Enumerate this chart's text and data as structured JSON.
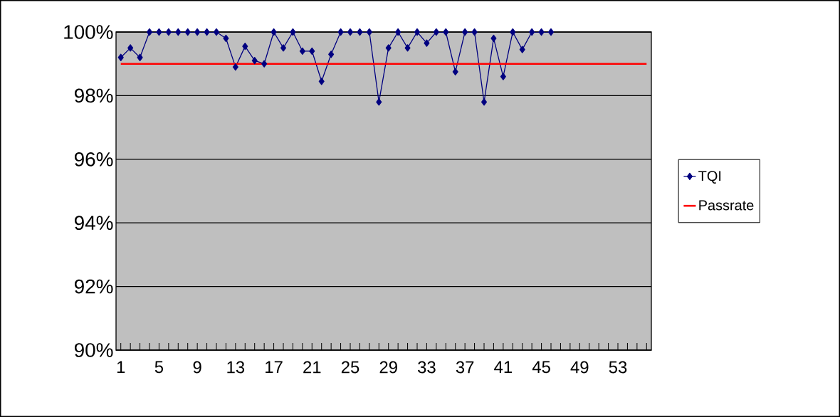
{
  "chart_data": {
    "type": "line",
    "categories": [
      "1",
      null,
      null,
      null,
      "5",
      null,
      null,
      null,
      "9",
      null,
      null,
      null,
      "13",
      null,
      null,
      null,
      "17",
      null,
      null,
      null,
      "21",
      null,
      null,
      null,
      "25",
      null,
      null,
      null,
      "29",
      null,
      null,
      null,
      "33",
      null,
      null,
      null,
      "37",
      null,
      null,
      null,
      "41",
      null,
      null,
      null,
      "45",
      null,
      null,
      null,
      "49",
      null,
      null,
      null,
      "53",
      null,
      null,
      null
    ],
    "series": [
      {
        "name": "TQI",
        "color": "#000080",
        "marker": "diamond",
        "values": [
          99.2,
          99.5,
          99.2,
          100,
          100,
          100,
          100,
          100,
          100,
          100,
          100,
          99.8,
          98.9,
          99.55,
          99.1,
          99.0,
          100,
          99.5,
          100,
          99.4,
          99.4,
          98.45,
          99.3,
          100,
          100,
          100,
          100,
          97.8,
          99.5,
          100,
          99.5,
          100,
          99.65,
          100,
          100,
          98.75,
          100,
          100,
          97.8,
          99.8,
          98.6,
          100,
          99.45,
          100,
          100,
          100,
          null,
          null,
          null,
          null,
          null,
          null,
          null,
          null,
          null,
          null
        ]
      },
      {
        "name": "Passrate",
        "color": "#ff0000",
        "marker": "none",
        "values": [
          99,
          99,
          99,
          99,
          99,
          99,
          99,
          99,
          99,
          99,
          99,
          99,
          99,
          99,
          99,
          99,
          99,
          99,
          99,
          99,
          99,
          99,
          99,
          99,
          99,
          99,
          99,
          99,
          99,
          99,
          99,
          99,
          99,
          99,
          99,
          99,
          99,
          99,
          99,
          99,
          99,
          99,
          99,
          99,
          99,
          99,
          99,
          99,
          99,
          99,
          99,
          99,
          99,
          99,
          99,
          99
        ]
      }
    ],
    "ylim": [
      90,
      100
    ],
    "yticks": [
      {
        "value": 90,
        "label": "90%"
      },
      {
        "value": 92,
        "label": "92%"
      },
      {
        "value": 94,
        "label": "94%"
      },
      {
        "value": 96,
        "label": "96%"
      },
      {
        "value": 98,
        "label": "98%"
      },
      {
        "value": 100,
        "label": "100%"
      }
    ],
    "grid": "y",
    "legend": "right"
  }
}
